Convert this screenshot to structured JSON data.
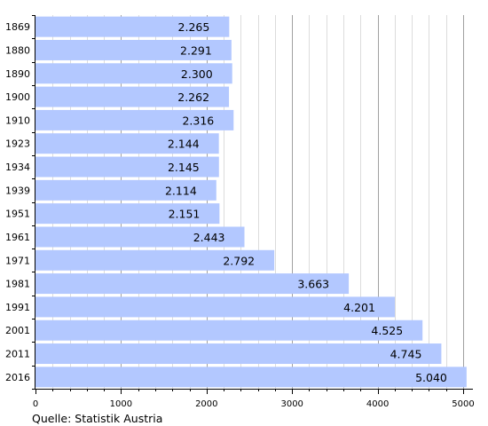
{
  "chart_data": {
    "type": "bar",
    "orientation": "horizontal",
    "categories": [
      "1869",
      "1880",
      "1890",
      "1900",
      "1910",
      "1923",
      "1934",
      "1939",
      "1951",
      "1961",
      "1971",
      "1981",
      "1991",
      "2001",
      "2011",
      "2016"
    ],
    "values": [
      2265,
      2291,
      2300,
      2262,
      2316,
      2144,
      2145,
      2114,
      2151,
      2443,
      2792,
      3663,
      4201,
      4525,
      4745,
      5040
    ],
    "value_labels": [
      "2.265",
      "2.291",
      "2.300",
      "2.262",
      "2.316",
      "2.144",
      "2.145",
      "2.114",
      "2.151",
      "2.443",
      "2.792",
      "3.663",
      "4.201",
      "4.525",
      "4.745",
      "5.040"
    ],
    "xlim": [
      0,
      5100
    ],
    "x_ticks": [
      0,
      1000,
      2000,
      3000,
      4000,
      5000
    ],
    "x_tick_labels": [
      "0",
      "1000",
      "2000",
      "3000",
      "4000",
      "5000"
    ],
    "grid": "vertical",
    "bar_color": "#b3c8ff",
    "grid_major_color": "#a0a0a0",
    "grid_minor_color": "#dcdcdc",
    "source_note": "Quelle: Statistik Austria"
  }
}
